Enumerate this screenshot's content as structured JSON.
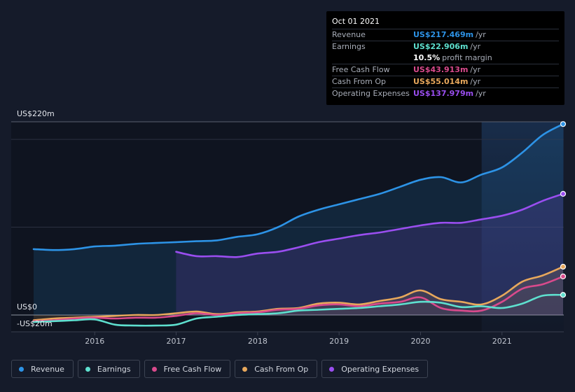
{
  "chart_data": {
    "type": "area",
    "y_top_label": "US$220m",
    "y_zero_label": "US$0",
    "y_bottom_label": "-US$20m",
    "ylim": [
      -20,
      220
    ],
    "xlim": [
      2015.25,
      2021.75
    ],
    "x_ticks": [
      {
        "value": 2016,
        "label": "2016"
      },
      {
        "value": 2017,
        "label": "2017"
      },
      {
        "value": 2018,
        "label": "2018"
      },
      {
        "value": 2019,
        "label": "2019"
      },
      {
        "value": 2020,
        "label": "2020"
      },
      {
        "value": 2021,
        "label": "2021"
      }
    ],
    "highlight_from": 2020.75,
    "series": [
      {
        "name": "Revenue",
        "color": "#2d93e6",
        "fill": true,
        "x": [
          2015.25,
          2015.5,
          2015.75,
          2016.0,
          2016.25,
          2016.5,
          2016.75,
          2017.0,
          2017.25,
          2017.5,
          2017.75,
          2018.0,
          2018.25,
          2018.5,
          2018.75,
          2019.0,
          2019.25,
          2019.5,
          2019.75,
          2020.0,
          2020.25,
          2020.5,
          2020.75,
          2021.0,
          2021.25,
          2021.5,
          2021.75
        ],
        "values": [
          75,
          74,
          75,
          78,
          79,
          81,
          82,
          83,
          84,
          85,
          89,
          92,
          100,
          112,
          120,
          126,
          132,
          138,
          146,
          154,
          157,
          151,
          160,
          168,
          185,
          205,
          217.469
        ]
      },
      {
        "name": "Operating Expenses",
        "color": "#9a4ef0",
        "fill": true,
        "x": [
          2017.0,
          2017.25,
          2017.5,
          2017.75,
          2018.0,
          2018.25,
          2018.5,
          2018.75,
          2019.0,
          2019.25,
          2019.5,
          2019.75,
          2020.0,
          2020.25,
          2020.5,
          2020.75,
          2021.0,
          2021.25,
          2021.5,
          2021.75
        ],
        "values": [
          72,
          67,
          67,
          66,
          70,
          72,
          77,
          83,
          87,
          91,
          94,
          98,
          102,
          105,
          105,
          109,
          113,
          120,
          130,
          137.979
        ]
      },
      {
        "name": "Cash From Op",
        "color": "#e8a85c",
        "fill": true,
        "x": [
          2015.25,
          2015.5,
          2015.75,
          2016.0,
          2016.25,
          2016.5,
          2016.75,
          2017.0,
          2017.25,
          2017.5,
          2017.75,
          2018.0,
          2018.25,
          2018.5,
          2018.75,
          2019.0,
          2019.25,
          2019.5,
          2019.75,
          2020.0,
          2020.25,
          2020.5,
          2020.75,
          2021.0,
          2021.25,
          2021.5,
          2021.75
        ],
        "values": [
          -6,
          -4,
          -3,
          -2,
          -1,
          0,
          0,
          2,
          4,
          1,
          3,
          4,
          7,
          8,
          13,
          14,
          12,
          16,
          20,
          28,
          18,
          15,
          12,
          22,
          38,
          45,
          55.014
        ]
      },
      {
        "name": "Free Cash Flow",
        "color": "#d94a8c",
        "fill": false,
        "x": [
          2015.25,
          2015.5,
          2015.75,
          2016.0,
          2016.25,
          2016.5,
          2016.75,
          2017.0,
          2017.25,
          2017.5,
          2017.75,
          2018.0,
          2018.25,
          2018.5,
          2018.75,
          2019.0,
          2019.25,
          2019.5,
          2019.75,
          2020.0,
          2020.25,
          2020.5,
          2020.75,
          2021.0,
          2021.25,
          2021.5,
          2021.75
        ],
        "values": [
          -7,
          -6,
          -4,
          -3,
          -4,
          -3,
          -3,
          -1,
          2,
          0,
          2,
          3,
          6,
          7,
          11,
          12,
          10,
          13,
          15,
          20,
          8,
          5,
          5,
          15,
          30,
          35,
          43.913
        ]
      },
      {
        "name": "Earnings",
        "color": "#5ee0cf",
        "fill": false,
        "x": [
          2015.25,
          2015.5,
          2015.75,
          2016.0,
          2016.25,
          2016.5,
          2016.75,
          2017.0,
          2017.25,
          2017.5,
          2017.75,
          2018.0,
          2018.25,
          2018.5,
          2018.75,
          2019.0,
          2019.25,
          2019.5,
          2019.75,
          2020.0,
          2020.25,
          2020.5,
          2020.75,
          2021.0,
          2021.25,
          2021.5,
          2021.75
        ],
        "values": [
          -8,
          -7,
          -6,
          -5,
          -11,
          -12,
          -12,
          -11,
          -4,
          -2,
          0,
          1,
          2,
          5,
          6,
          7,
          8,
          10,
          12,
          15,
          14,
          9,
          10,
          8,
          13,
          22,
          22.906
        ]
      }
    ]
  },
  "tooltip": {
    "date": "Oct 01 2021",
    "revenue": {
      "label": "Revenue",
      "value": "US$217.469m",
      "unit": "/yr"
    },
    "earnings": {
      "label": "Earnings",
      "value": "US$22.906m",
      "unit": "/yr"
    },
    "margin": {
      "value": "10.5%",
      "text": "profit margin"
    },
    "fcf": {
      "label": "Free Cash Flow",
      "value": "US$43.913m",
      "unit": "/yr"
    },
    "cfo": {
      "label": "Cash From Op",
      "value": "US$55.014m",
      "unit": "/yr"
    },
    "opex": {
      "label": "Operating Expenses",
      "value": "US$137.979m",
      "unit": "/yr"
    }
  },
  "legend": [
    {
      "label": "Revenue",
      "color": "#2d93e6"
    },
    {
      "label": "Earnings",
      "color": "#5ee0cf"
    },
    {
      "label": "Free Cash Flow",
      "color": "#d94a8c"
    },
    {
      "label": "Cash From Op",
      "color": "#e8a85c"
    },
    {
      "label": "Operating Expenses",
      "color": "#9a4ef0"
    }
  ]
}
